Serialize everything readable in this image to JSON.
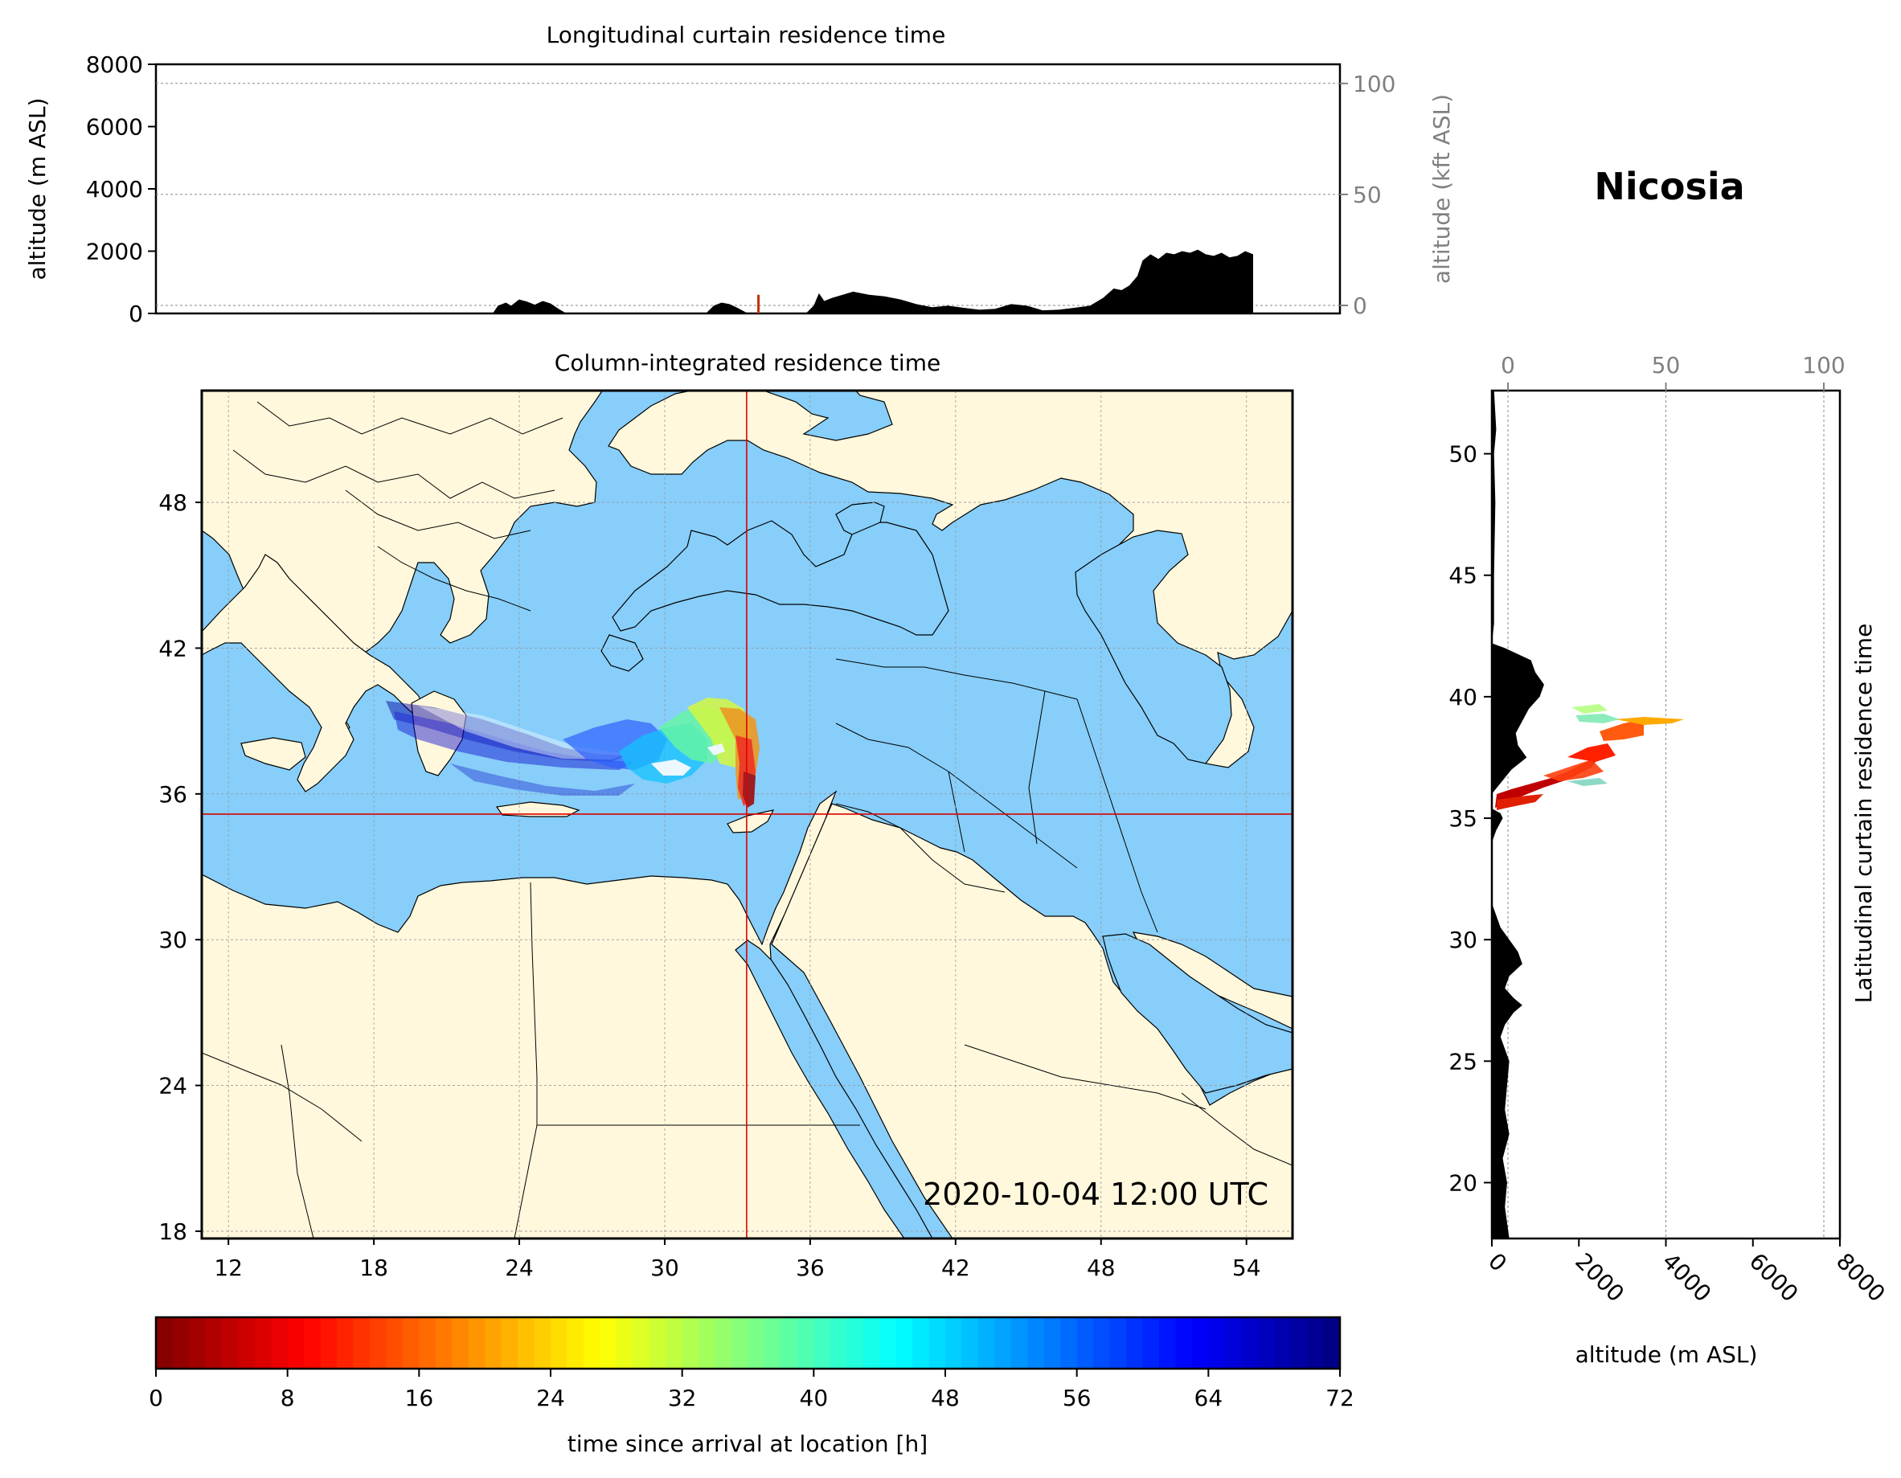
{
  "station": "Nicosia",
  "timestamp": "2020-10-04 12:00 UTC",
  "colors": {
    "sea": "#87cefa",
    "land": "#fff8dc",
    "crosshair": "#dd0000",
    "terrain": "#000000",
    "secondary_axis": "#808080"
  },
  "chart_data": [
    {
      "id": "longitudinal-curtain",
      "type": "area",
      "title": "Longitudinal curtain residence time",
      "ylabel": "altitude (m ASL)",
      "ylabel_right": "altitude (kft ASL)",
      "ylim": [
        0,
        8000
      ],
      "yticks": [
        0,
        2000,
        4000,
        6000,
        8000
      ],
      "yticks_right": [
        0,
        50,
        100
      ],
      "xlim": [
        10.5,
        55.5
      ],
      "series": [
        {
          "values_x": [
            23.3,
            23.5,
            23.8,
            24.0,
            24.3,
            24.6,
            24.9,
            25.2,
            25.5,
            25.8,
            26.1,
            31.4,
            31.7,
            32.0,
            32.3,
            32.6,
            33.0,
            35.2,
            35.5,
            35.7,
            35.9,
            36.2,
            36.6,
            37.0,
            37.6,
            38.2,
            38.8,
            39.4,
            40.0,
            40.6,
            41.2,
            41.8,
            42.4,
            43.0,
            43.6,
            44.2,
            44.8,
            45.4,
            46.0,
            46.5,
            46.9,
            47.2,
            47.5,
            47.8,
            48.0,
            48.3,
            48.6,
            48.9,
            49.2,
            49.5,
            49.8,
            50.1,
            50.4,
            50.7,
            51.0,
            51.3,
            51.6,
            51.9,
            52.2
          ],
          "values_y": [
            0,
            250,
            350,
            250,
            450,
            380,
            280,
            400,
            320,
            150,
            0,
            0,
            250,
            350,
            300,
            180,
            0,
            0,
            250,
            650,
            400,
            500,
            600,
            700,
            600,
            550,
            450,
            300,
            200,
            250,
            180,
            120,
            150,
            300,
            250,
            100,
            120,
            180,
            250,
            500,
            800,
            750,
            900,
            1200,
            1700,
            1900,
            1750,
            1950,
            1900,
            2000,
            1950,
            2050,
            1900,
            1850,
            1950,
            1800,
            1850,
            2000,
            1900
          ]
        }
      ],
      "annotation": {
        "x": 33.4,
        "ylim": [
          0,
          600
        ]
      }
    },
    {
      "id": "column-integrated",
      "type": "scatter",
      "title": "Column-integrated residence time",
      "xlim": [
        10.9,
        55.9
      ],
      "ylim": [
        17.7,
        52.6
      ],
      "xticks": [
        12,
        18,
        24,
        30,
        36,
        42,
        48,
        54
      ],
      "yticks": [
        18,
        24,
        30,
        36,
        42,
        48
      ],
      "crosshair": {
        "lon": 33.38,
        "lat": 35.17
      },
      "series": [
        {
          "name": "",
          "values_x": [
            20.5,
            23.0,
            26.0
          ],
          "values_y": [
            38.5,
            37.9,
            37.5
          ]
        }
      ]
    },
    {
      "id": "latitudinal-curtain",
      "type": "area",
      "title": "Latitudinal curtain residence time",
      "xlabel": "altitude (m ASL)",
      "xlabel_top": "",
      "xlim": [
        0,
        8000
      ],
      "xticks": [
        0,
        2000,
        4000,
        6000,
        8000
      ],
      "xticks_top": [
        0,
        50,
        100
      ],
      "ylim": [
        17.7,
        52.6
      ],
      "yticks": [
        20,
        25,
        30,
        35,
        40,
        45,
        50
      ],
      "series": [
        {
          "values_y": [
            17.7,
            19.0,
            20.0,
            21.0,
            22.0,
            23.0,
            24.0,
            25.0,
            25.5,
            26.0,
            26.5,
            27.0,
            27.3,
            27.6,
            28.0,
            28.5,
            29.0,
            29.5,
            30.0,
            30.5,
            31.0,
            31.5,
            32.0,
            34.0,
            34.5,
            35.0,
            35.2,
            35.4,
            36.0,
            37.0,
            37.5,
            38.0,
            38.5,
            39.0,
            39.5,
            40.0,
            40.5,
            41.0,
            41.5,
            42.0,
            42.2,
            43.0,
            45.0,
            48.0,
            50.0,
            51.0,
            52.6
          ],
          "values_x": [
            400,
            300,
            350,
            250,
            400,
            300,
            350,
            400,
            300,
            200,
            300,
            500,
            700,
            500,
            300,
            400,
            700,
            600,
            400,
            200,
            100,
            0,
            0,
            0,
            100,
            250,
            200,
            0,
            0,
            450,
            800,
            600,
            550,
            700,
            850,
            1100,
            1200,
            1000,
            900,
            300,
            0,
            50,
            50,
            80,
            50,
            100,
            50
          ]
        }
      ]
    },
    {
      "id": "colorbar",
      "type": "heatmap",
      "xlabel": "time since arrival at location [h]",
      "xlim": [
        0,
        72
      ],
      "xticks": [
        0,
        8,
        16,
        24,
        32,
        40,
        48,
        56,
        64,
        72
      ],
      "colors": [
        "#7f0000",
        "#ff0000",
        "#ff8000",
        "#ffff00",
        "#80ff80",
        "#00ffff",
        "#0080ff",
        "#0000ff",
        "#00007f"
      ]
    }
  ]
}
